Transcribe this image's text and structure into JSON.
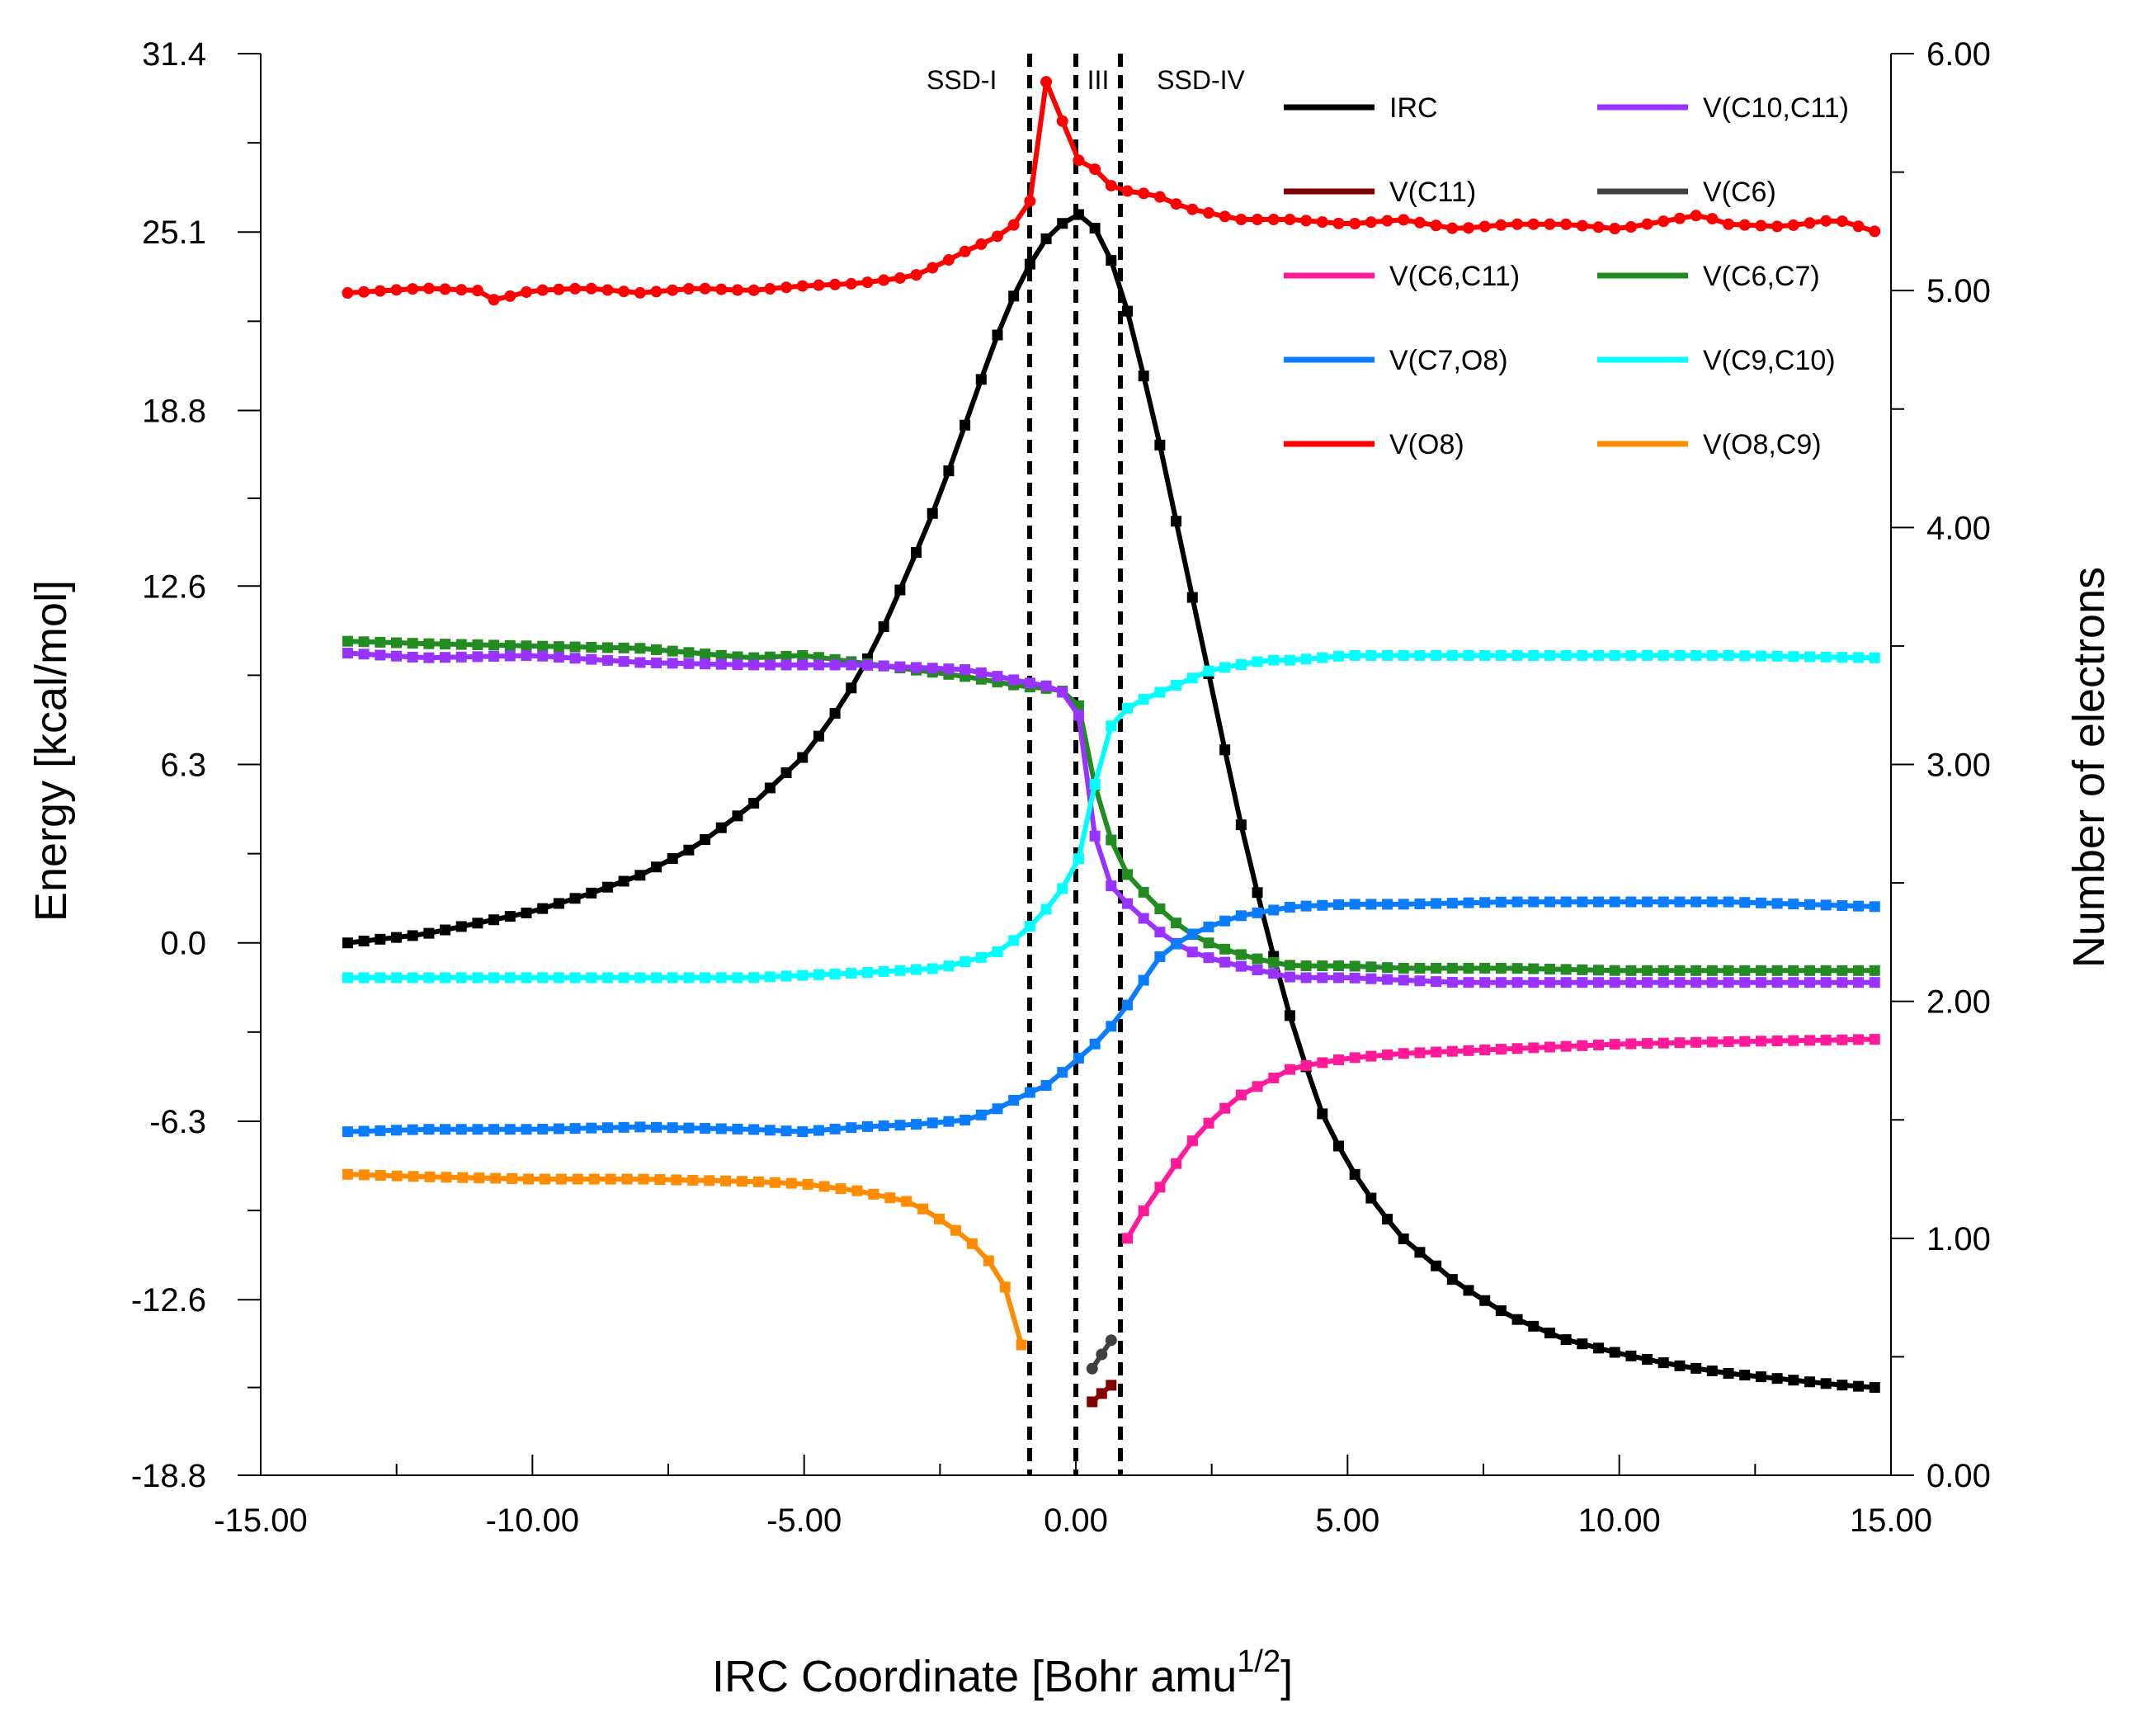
{
  "chart_data": {
    "type": "line",
    "xlabel": "IRC Coordinate [Bohr amu",
    "xlabel_sup": "1/2",
    "xlabel_end": "]",
    "ylabel_left": "Energy [kcal/mol]",
    "ylabel_right": "Number of electrons",
    "xlim": [
      -15,
      15
    ],
    "ylim_left": [
      -18.8,
      31.4
    ],
    "ylim_right": [
      0,
      6
    ],
    "x_ticks": [
      -15,
      -10,
      -5,
      0,
      5,
      10,
      15
    ],
    "x_tick_labels": [
      "-15.00",
      "-10.00",
      "-5.00",
      "0.00",
      "5.00",
      "10.00",
      "15.00"
    ],
    "y_left_ticks": [
      -18.8,
      -12.6,
      -6.3,
      0.0,
      6.3,
      12.6,
      18.8,
      25.1,
      31.4
    ],
    "y_left_tick_labels": [
      "-18.8",
      "-12.6",
      "-6.3",
      "0.0",
      "6.3",
      "12.6",
      "18.8",
      "25.1",
      "31.4"
    ],
    "y_right_ticks": [
      0,
      1,
      2,
      3,
      4,
      5,
      6
    ],
    "y_right_tick_labels": [
      "0.00",
      "1.00",
      "2.00",
      "3.00",
      "4.00",
      "5.00",
      "6.00"
    ],
    "region_boundaries": [
      -0.85,
      0.0,
      0.82
    ],
    "region_labels": [
      {
        "text": "SSD-I",
        "x": -2.1
      },
      {
        "text": "III",
        "x": 0.41
      },
      {
        "text": "SSD-IV",
        "x": 2.3
      }
    ],
    "legend": [
      {
        "name": "IRC",
        "color": "#000000"
      },
      {
        "name": "V(C10,C11)",
        "color": "#9933ff"
      },
      {
        "name": "V(C11)",
        "color": "#800000"
      },
      {
        "name": "V(C6)",
        "color": "#404040"
      },
      {
        "name": "V(C6,C11)",
        "color": "#ff1a99"
      },
      {
        "name": "V(C6,C7)",
        "color": "#228b22"
      },
      {
        "name": "V(C7,O8)",
        "color": "#0a7cff"
      },
      {
        "name": "V(C9,C10)",
        "color": "#00ffff"
      },
      {
        "name": "V(O8)",
        "color": "#ff0000"
      },
      {
        "name": "V(O8,C9)",
        "color": "#ff8c00"
      }
    ],
    "series": [
      {
        "name": "IRC",
        "axis": "left",
        "color": "#000000",
        "x": [
          -13.4,
          -12,
          -10,
          -9,
          -8,
          -7,
          -6,
          -5,
          -4.5,
          -4,
          -3.5,
          -3,
          -2.5,
          -2,
          -1.5,
          -1,
          -0.5,
          0,
          0.5,
          1,
          1.5,
          2,
          2.5,
          3,
          3.5,
          4,
          4.5,
          5,
          5.5,
          6,
          7,
          8,
          9,
          10,
          11,
          12,
          13,
          14,
          14.7
        ],
        "y": [
          0,
          0.3,
          1.1,
          1.7,
          2.4,
          3.4,
          4.8,
          6.6,
          7.9,
          9.4,
          11.3,
          13.5,
          15.8,
          18.5,
          21.2,
          23.5,
          25,
          25.8,
          25,
          22,
          18,
          13.5,
          9,
          4.5,
          0.5,
          -3,
          -5.9,
          -7.8,
          -9.2,
          -10.4,
          -12,
          -13.2,
          -14,
          -14.5,
          -14.9,
          -15.2,
          -15.4,
          -15.6,
          -15.7
        ]
      },
      {
        "name": "V(O8)",
        "axis": "right",
        "color": "#ff0000",
        "x": [
          -13.4,
          -12,
          -11,
          -10.7,
          -10,
          -9,
          -8,
          -7,
          -6,
          -5,
          -4,
          -3,
          -2.5,
          -2,
          -1.5,
          -1,
          -0.8,
          -0.6,
          -0.4,
          -0.2,
          0,
          0.2,
          0.4,
          0.6,
          0.8,
          1,
          1.5,
          2,
          3,
          4,
          5,
          6,
          7,
          8,
          9,
          10,
          11,
          11.5,
          12,
          13,
          14,
          14.7
        ],
        "y": [
          4.99,
          5.01,
          5.0,
          4.96,
          5.0,
          5.01,
          4.99,
          5.01,
          5.0,
          5.02,
          5.03,
          5.06,
          5.11,
          5.17,
          5.22,
          5.3,
          5.4,
          5.9,
          5.83,
          5.68,
          5.55,
          5.55,
          5.5,
          5.45,
          5.42,
          5.42,
          5.4,
          5.35,
          5.3,
          5.3,
          5.28,
          5.3,
          5.26,
          5.28,
          5.28,
          5.26,
          5.3,
          5.32,
          5.28,
          5.27,
          5.3,
          5.25
        ]
      },
      {
        "name": "V(C6,C7)",
        "axis": "right",
        "color": "#228b22",
        "x": [
          -13.4,
          -12,
          -10,
          -8,
          -6,
          -5,
          -4,
          -3,
          -2,
          -1,
          -0.5,
          0,
          0.2,
          0.4,
          0.8,
          1,
          1.5,
          2,
          2.5,
          3,
          3.5,
          4,
          5,
          6,
          8,
          10,
          12,
          14.7
        ],
        "y": [
          3.52,
          3.51,
          3.5,
          3.49,
          3.45,
          3.46,
          3.43,
          3.4,
          3.37,
          3.33,
          3.32,
          3.3,
          3.1,
          2.85,
          2.58,
          2.52,
          2.4,
          2.3,
          2.24,
          2.2,
          2.17,
          2.15,
          2.15,
          2.14,
          2.14,
          2.13,
          2.13,
          2.13
        ]
      },
      {
        "name": "V(C10,C11)",
        "axis": "right",
        "color": "#9933ff",
        "x": [
          -13.4,
          -12,
          -10,
          -8,
          -6,
          -4,
          -2,
          -1,
          -0.5,
          0,
          0.2,
          0.4,
          0.6,
          0.8,
          1,
          1.5,
          2,
          2.5,
          3,
          4,
          5,
          7,
          10,
          12,
          14.7
        ],
        "y": [
          3.47,
          3.45,
          3.46,
          3.43,
          3.42,
          3.42,
          3.4,
          3.35,
          3.33,
          3.28,
          3.0,
          2.6,
          2.5,
          2.45,
          2.4,
          2.3,
          2.22,
          2.18,
          2.15,
          2.1,
          2.1,
          2.08,
          2.08,
          2.08,
          2.08
        ]
      },
      {
        "name": "V(C9,C10)",
        "axis": "right",
        "color": "#00ffff",
        "x": [
          -13.4,
          -12,
          -10,
          -8,
          -6,
          -4,
          -2.5,
          -2,
          -1.5,
          -1,
          -0.5,
          0,
          0.2,
          0.4,
          0.6,
          0.8,
          1,
          1.5,
          2,
          2.5,
          3,
          3.5,
          4,
          5,
          6,
          8,
          10,
          12,
          14.7
        ],
        "y": [
          2.1,
          2.1,
          2.1,
          2.1,
          2.1,
          2.12,
          2.14,
          2.17,
          2.2,
          2.28,
          2.4,
          2.55,
          2.75,
          2.97,
          3.15,
          3.2,
          3.25,
          3.3,
          3.35,
          3.4,
          3.42,
          3.44,
          3.44,
          3.46,
          3.46,
          3.46,
          3.46,
          3.46,
          3.45
        ]
      },
      {
        "name": "V(C7,O8)",
        "axis": "right",
        "color": "#0a7cff",
        "x": [
          -13.4,
          -12,
          -10,
          -8,
          -6,
          -5,
          -4,
          -3,
          -2,
          -1.5,
          -1,
          -0.5,
          0,
          0.5,
          1,
          1.5,
          2,
          2.5,
          3,
          3.5,
          4,
          5,
          6,
          8,
          10,
          12,
          14.7
        ],
        "y": [
          1.45,
          1.46,
          1.46,
          1.47,
          1.46,
          1.45,
          1.47,
          1.48,
          1.5,
          1.54,
          1.6,
          1.65,
          1.75,
          1.85,
          2.0,
          2.18,
          2.27,
          2.32,
          2.36,
          2.38,
          2.4,
          2.41,
          2.41,
          2.42,
          2.42,
          2.42,
          2.4
        ]
      },
      {
        "name": "V(C6,C11)",
        "axis": "right",
        "color": "#ff1a99",
        "x": [
          0.95,
          1.2,
          1.5,
          1.8,
          2.1,
          2.5,
          3,
          3.5,
          4,
          5,
          6,
          8,
          10,
          12,
          14.7
        ],
        "y": [
          1.0,
          1.1,
          1.2,
          1.3,
          1.4,
          1.5,
          1.6,
          1.66,
          1.72,
          1.76,
          1.78,
          1.8,
          1.82,
          1.83,
          1.84
        ]
      },
      {
        "name": "V(O8,C9)",
        "axis": "right",
        "color": "#ff8c00",
        "x": [
          -13.4,
          -12,
          -10,
          -8,
          -6,
          -5,
          -4,
          -3,
          -2.5,
          -2,
          -1.5,
          -1.2,
          -1
        ],
        "y": [
          1.27,
          1.26,
          1.25,
          1.25,
          1.24,
          1.23,
          1.2,
          1.15,
          1.08,
          1.0,
          0.88,
          0.75,
          0.55
        ]
      },
      {
        "name": "V(C6)",
        "axis": "right",
        "color": "#404040",
        "x": [
          0.3,
          0.65
        ],
        "y": [
          0.45,
          0.57
        ]
      },
      {
        "name": "V(C11)",
        "axis": "right",
        "color": "#800000",
        "x": [
          0.3,
          0.65
        ],
        "y": [
          0.31,
          0.38
        ]
      }
    ]
  }
}
